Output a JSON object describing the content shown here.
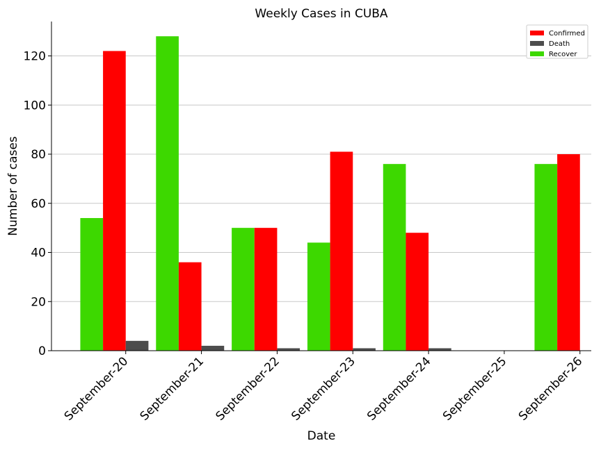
{
  "chart_data": {
    "type": "bar",
    "title": "Weekly Cases in CUBA",
    "xlabel": "Date",
    "ylabel": "Number of cases",
    "categories": [
      "September-20",
      "September-21",
      "September-22",
      "September-23",
      "September-24",
      "September-25",
      "September-26"
    ],
    "series": [
      {
        "name": "Recover",
        "color": "#3dd800",
        "values": [
          54,
          128,
          50,
          44,
          76,
          0,
          76
        ]
      },
      {
        "name": "Confirmed",
        "color": "#ff0000",
        "values": [
          122,
          36,
          50,
          81,
          48,
          0,
          80
        ]
      },
      {
        "name": "Death",
        "color": "#4d4d4d",
        "values": [
          4,
          2,
          1,
          1,
          1,
          0,
          0
        ]
      }
    ],
    "legend_order": [
      "Confirmed",
      "Death",
      "Recover"
    ],
    "ylim": [
      0,
      134
    ],
    "yticks": [
      0,
      20,
      40,
      60,
      80,
      100,
      120
    ],
    "grid": "horizontal",
    "legend_position": "top-right"
  }
}
